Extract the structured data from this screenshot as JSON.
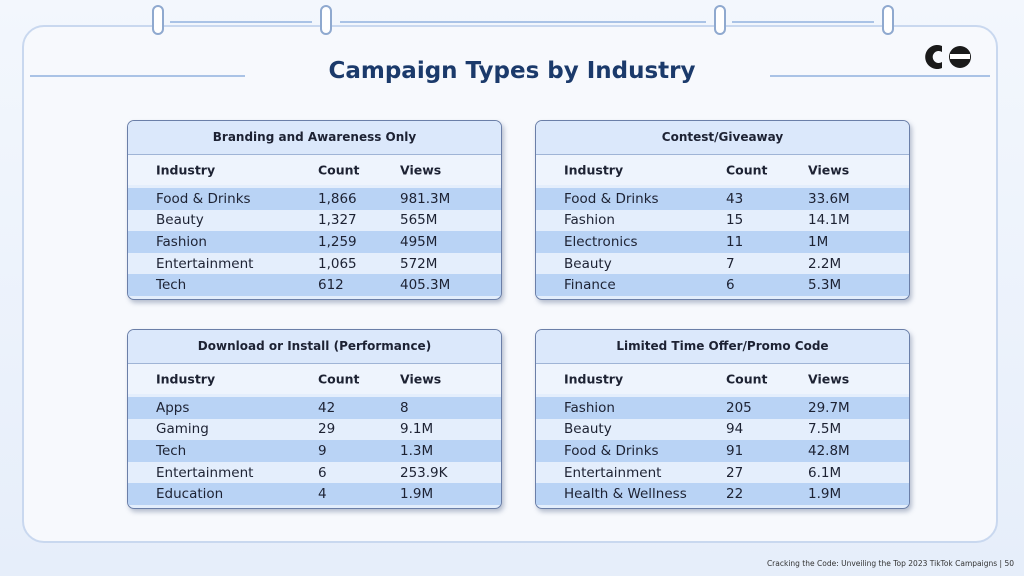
{
  "title": "Campaign Types by Industry",
  "tables": [
    {
      "title": "Branding and Awareness Only",
      "header": [
        "Industry",
        "Count",
        "Views"
      ],
      "rows": [
        [
          "Food & Drinks",
          "1,866",
          "981.3M"
        ],
        [
          "Beauty",
          "1,327",
          "565M"
        ],
        [
          "Fashion",
          "1,259",
          "495M"
        ],
        [
          "Entertainment",
          "1,065",
          "572M"
        ],
        [
          "Tech",
          "612",
          "405.3M"
        ]
      ]
    },
    {
      "title": "Contest/Giveaway",
      "header": [
        "Industry",
        "Count",
        "Views"
      ],
      "rows": [
        [
          "Food & Drinks",
          "43",
          "33.6M"
        ],
        [
          "Fashion",
          "15",
          "14.1M"
        ],
        [
          "Electronics",
          "11",
          "1M"
        ],
        [
          "Beauty",
          "7",
          "2.2M"
        ],
        [
          "Finance",
          "6",
          "5.3M"
        ]
      ]
    },
    {
      "title": "Download or Install (Performance)",
      "header": [
        "Industry",
        "Count",
        "Views"
      ],
      "rows": [
        [
          "Apps",
          "42",
          "8"
        ],
        [
          "Gaming",
          "29",
          "9.1M"
        ],
        [
          "Tech",
          "9",
          "1.3M"
        ],
        [
          "Entertainment",
          "6",
          "253.9K"
        ],
        [
          "Education",
          "4",
          "1.9M"
        ]
      ]
    },
    {
      "title": "Limited Time Offer/Promo Code",
      "header": [
        "Industry",
        "Count",
        "Views"
      ],
      "rows": [
        [
          "Fashion",
          "205",
          "29.7M"
        ],
        [
          "Beauty",
          "94",
          "7.5M"
        ],
        [
          "Food & Drinks",
          "91",
          "42.8M"
        ],
        [
          "Entertainment",
          "27",
          "6.1M"
        ],
        [
          "Health & Wellness",
          "22",
          "1.9M"
        ]
      ]
    }
  ],
  "footer": "Cracking the Code: Unveiling the Top 2023 TikTok Campaigns | 50"
}
